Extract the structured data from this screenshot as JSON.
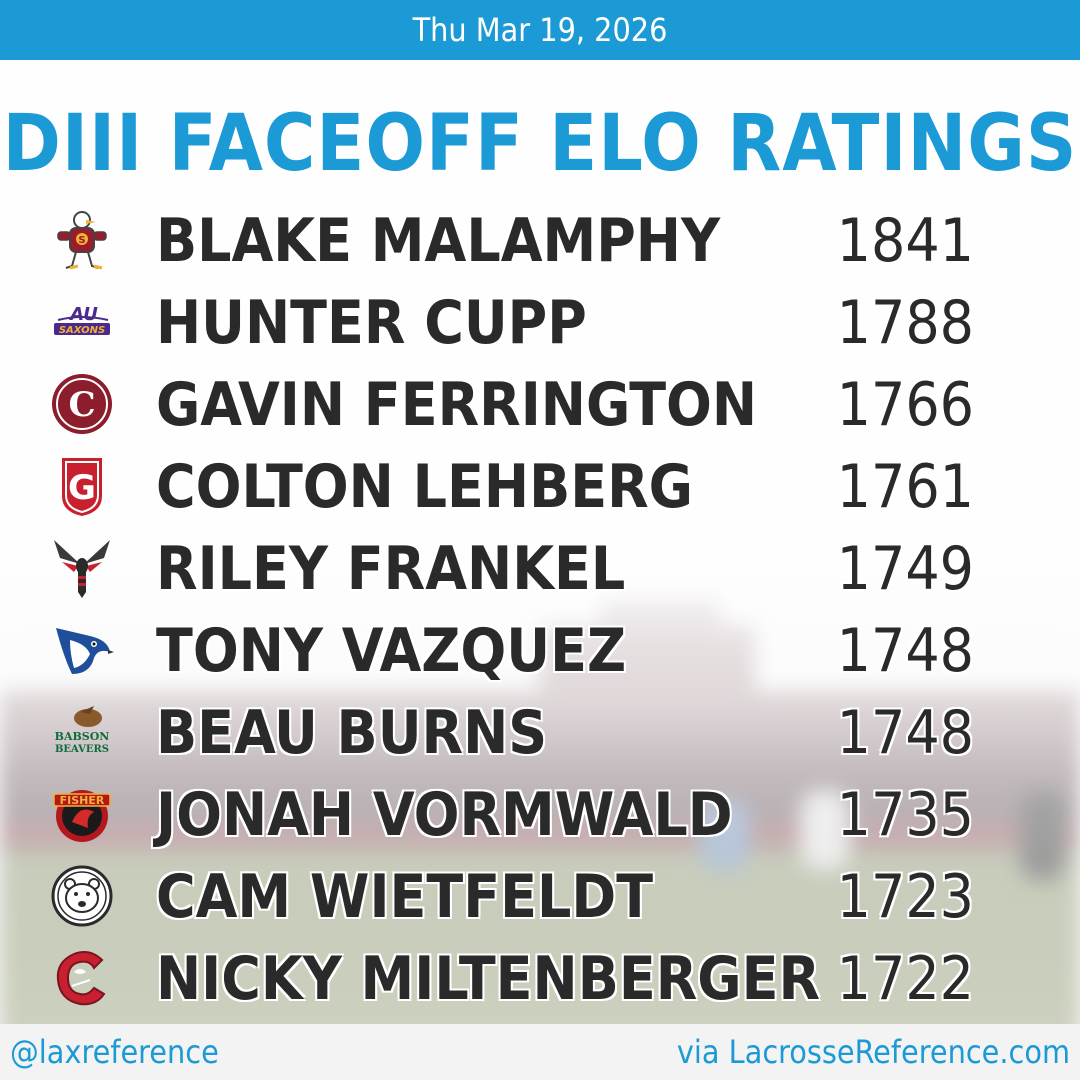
{
  "header": {
    "date": "Thu Mar 19, 2026"
  },
  "title": "DIII FACEOFF ELO RATINGS",
  "players": [
    {
      "name": "BLAKE MALAMPHY",
      "rating": "1841",
      "logo_icon": "seagull-mascot-icon"
    },
    {
      "name": "HUNTER CUPP",
      "rating": "1788",
      "logo_icon": "au-saxons-icon"
    },
    {
      "name": "GAVIN FERRINGTON",
      "rating": "1766",
      "logo_icon": "c-circle-icon"
    },
    {
      "name": "COLTON LEHBERG",
      "rating": "1761",
      "logo_icon": "g-shield-icon"
    },
    {
      "name": "RILEY FRANKEL",
      "rating": "1749",
      "logo_icon": "hornet-icon"
    },
    {
      "name": "TONY VAZQUEZ",
      "rating": "1748",
      "logo_icon": "bluejay-icon"
    },
    {
      "name": "BEAU BURNS",
      "rating": "1748",
      "logo_icon": "babson-beavers-icon"
    },
    {
      "name": "JONAH VORMWALD",
      "rating": "1735",
      "logo_icon": "fisher-cardinals-icon"
    },
    {
      "name": "CAM WIETFELDT",
      "rating": "1723",
      "logo_icon": "polar-bear-icon"
    },
    {
      "name": "NICKY MILTENBERGER",
      "rating": "1722",
      "logo_icon": "cortland-c-icon"
    }
  ],
  "footer": {
    "handle": "@laxreference",
    "source": "via LacrosseReference.com"
  },
  "colors": {
    "accent": "#1b9ad6",
    "text": "#2a2a2a"
  }
}
